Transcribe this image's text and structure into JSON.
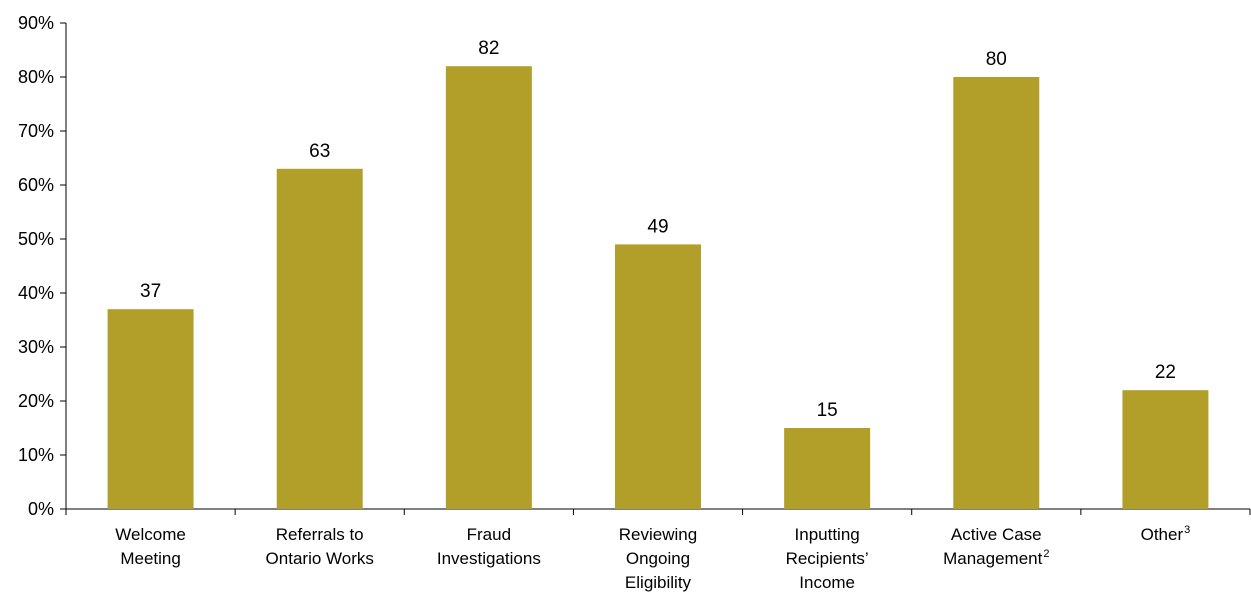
{
  "chart_data": {
    "type": "bar",
    "title": "",
    "xlabel": "",
    "ylabel": "",
    "ylim": [
      0,
      90
    ],
    "yticks": [
      "0%",
      "10%",
      "20%",
      "30%",
      "40%",
      "50%",
      "60%",
      "70%",
      "80%",
      "90%"
    ],
    "grid": false,
    "bar_color": "#b29f2a",
    "categories": [
      {
        "lines": [
          "Welcome",
          "Meeting"
        ],
        "sup": ""
      },
      {
        "lines": [
          "Referrals to",
          "Ontario Works"
        ],
        "sup": ""
      },
      {
        "lines": [
          "Fraud",
          "Investigations"
        ],
        "sup": ""
      },
      {
        "lines": [
          "Reviewing",
          "Ongoing",
          "Eligibility"
        ],
        "sup": ""
      },
      {
        "lines": [
          "Inputting",
          "Recipients’",
          "Income"
        ],
        "sup": ""
      },
      {
        "lines": [
          "Active Case",
          "Management"
        ],
        "sup": "2"
      },
      {
        "lines": [
          "Other"
        ],
        "sup": "3"
      }
    ],
    "values": [
      37,
      63,
      82,
      49,
      15,
      80,
      22
    ],
    "data_labels": [
      "37",
      "63",
      "82",
      "49",
      "15",
      "80",
      "22"
    ]
  }
}
